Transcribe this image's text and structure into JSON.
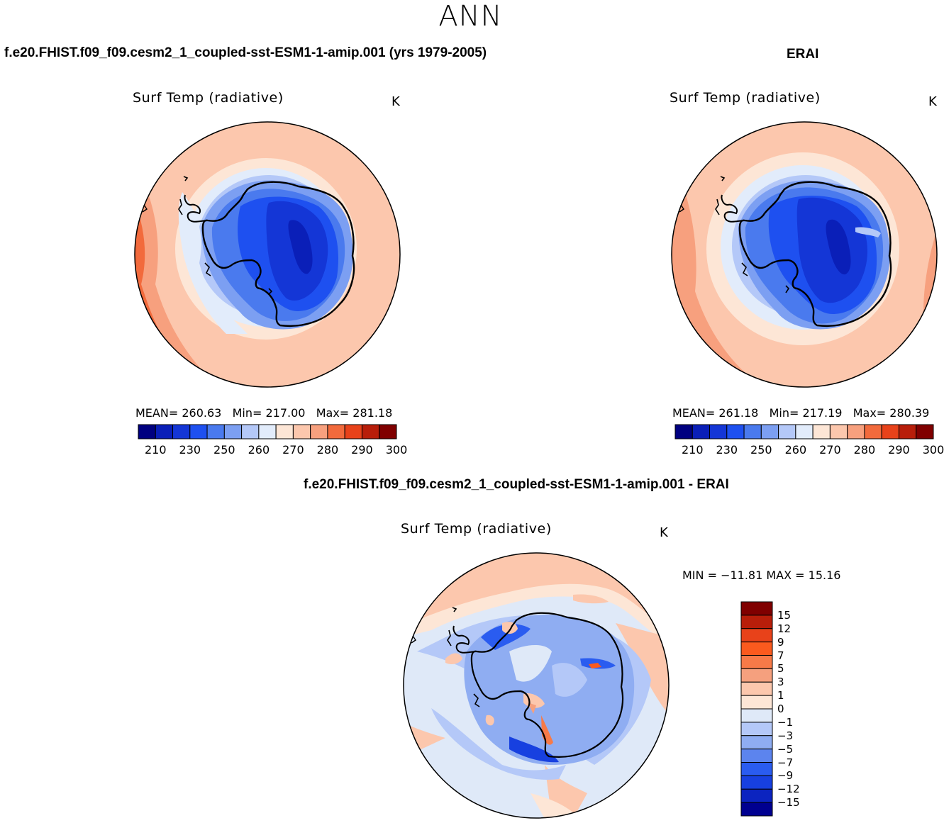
{
  "page": {
    "title": "ANN"
  },
  "panels": [
    {
      "id": "model",
      "case_title": "f.e20.FHIST.f09_f09.cesm2_1_coupled-sst-ESM1-1-amip.001 (yrs 1979-2005)",
      "variable": "Surf Temp (radiative)",
      "units": "K",
      "stats": {
        "mean_label": "MEAN=",
        "mean": "260.63",
        "min_label": "Min=",
        "min": "217.00",
        "max_label": "Max=",
        "max": "281.18"
      },
      "colorbar_ticks": [
        "210",
        "230",
        "250",
        "260",
        "270",
        "280",
        "290",
        "300"
      ]
    },
    {
      "id": "obs",
      "case_title": "ERAI",
      "variable": "Surf Temp (radiative)",
      "units": "K",
      "stats": {
        "mean_label": "MEAN=",
        "mean": "261.18",
        "min_label": "Min=",
        "min": "217.19",
        "max_label": "Max=",
        "max": "280.39"
      },
      "colorbar_ticks": [
        "210",
        "230",
        "250",
        "260",
        "270",
        "280",
        "290",
        "300"
      ]
    }
  ],
  "diff_panel": {
    "case_title": "f.e20.FHIST.f09_f09.cesm2_1_coupled-sst-ESM1-1-amip.001 - ERAI",
    "variable": "Surf Temp (radiative)",
    "units": "K",
    "minmax": "MIN = −11.81  MAX =   15.16",
    "colorbar_ticks": [
      "15",
      "12",
      "9",
      "7",
      "5",
      "3",
      "1",
      "0",
      "−1",
      "−3",
      "−5",
      "−7",
      "−9",
      "−12",
      "−15"
    ]
  },
  "colors": {
    "abs_scale": [
      "#000080",
      "#0a1fb8",
      "#1436d6",
      "#1e50f0",
      "#4a7aee",
      "#7c9ff2",
      "#b4c8f8",
      "#e2ecfb",
      "#fde6d6",
      "#fcc7ad",
      "#f7a07e",
      "#f26a3c",
      "#e8421a",
      "#b81e0a",
      "#800000"
    ],
    "diff_scale": [
      "#800000",
      "#b81e0a",
      "#e8421a",
      "#fb5a1e",
      "#f77a48",
      "#f5a07e",
      "#fcc7ad",
      "#fde6d6",
      "#dfe9f8",
      "#b4c8f8",
      "#8fadf2",
      "#5c84ee",
      "#2a5cf0",
      "#1740e0",
      "#0c24c0",
      "#000090"
    ]
  }
}
